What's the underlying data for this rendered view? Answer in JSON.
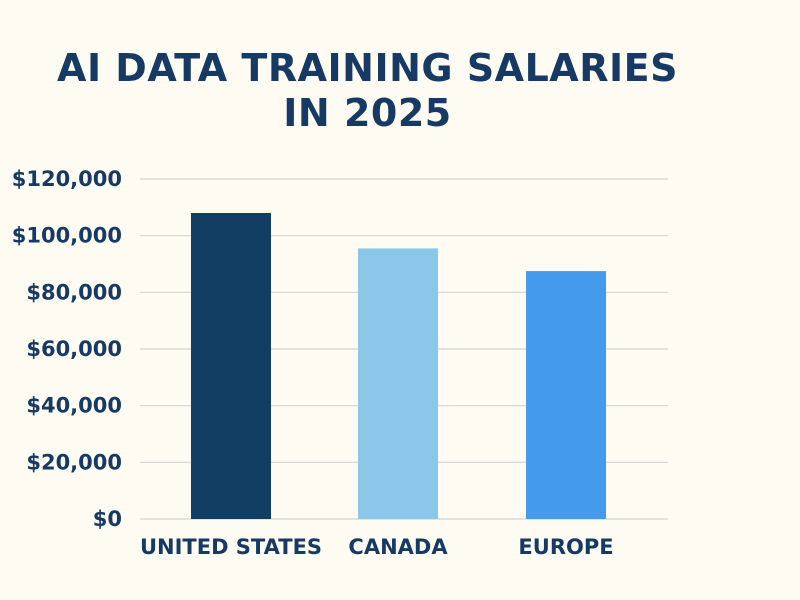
{
  "title": {
    "line1": "AI DATA TRAINING SALARIES",
    "line2": "IN 2025"
  },
  "colors": {
    "background": "#fdfbf2",
    "text": "#163a64",
    "grid": "#d4d4d4"
  },
  "chart_data": {
    "type": "bar",
    "title": "AI DATA TRAINING SALARIES IN 2025",
    "categories": [
      "UNITED STATES",
      "CANADA",
      "EUROPE"
    ],
    "values": [
      108000,
      95500,
      87500
    ],
    "bar_colors": [
      "#123e63",
      "#8ac7e8",
      "#449bee"
    ],
    "ylim": [
      0,
      120000
    ],
    "yticks": [
      0,
      20000,
      40000,
      60000,
      80000,
      100000,
      120000
    ],
    "ytick_labels": [
      "$0",
      "$20,000",
      "$40,000",
      "$60,000",
      "$80,000",
      "$100,000",
      "$120,000"
    ],
    "xlabel": "",
    "ylabel": "",
    "grid": true,
    "legend": false
  }
}
